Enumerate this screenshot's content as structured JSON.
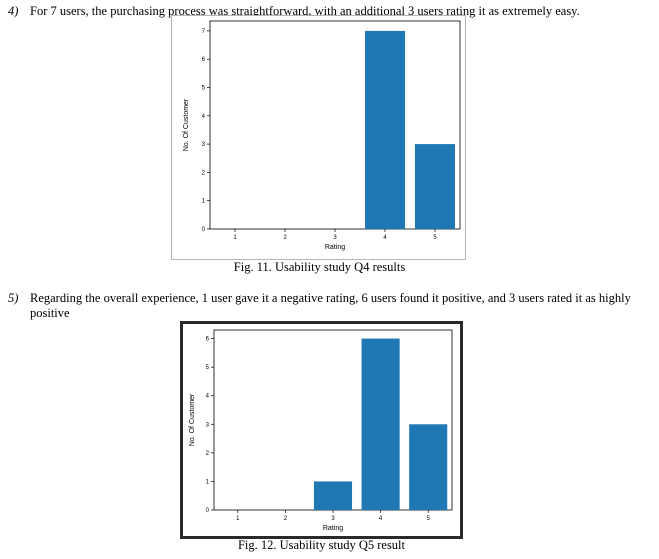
{
  "paragraphs": [
    {
      "num": "4)",
      "text": "For 7 users, the purchasing process was straightforward, with an additional 3 users rating it as extremely easy."
    },
    {
      "num": "5)",
      "line1": "Regarding the overall experience, 1 user gave it a negative rating, 6 users found it positive, and 3 users rated it as highly",
      "line2": "positive"
    }
  ],
  "captions": [
    "Fig. 11. Usability study Q4 results",
    "Fig. 12. Usability study Q5 result"
  ],
  "chart_data": [
    {
      "type": "bar",
      "categories": [
        "1",
        "2",
        "3",
        "4",
        "5"
      ],
      "values": [
        0,
        0,
        0,
        7,
        3
      ],
      "xlabel": "Rating",
      "ylabel": "No. Of Customer",
      "yticks": [
        "0",
        "1",
        "2",
        "3",
        "4",
        "5",
        "6",
        "7"
      ],
      "ylim": [
        0,
        7.35
      ],
      "color": "#1f77b4"
    },
    {
      "type": "bar",
      "categories": [
        "1",
        "2",
        "3",
        "4",
        "5"
      ],
      "values": [
        0,
        0,
        1,
        6,
        3
      ],
      "xlabel": "Rating",
      "ylabel": "No. Of Customer",
      "yticks": [
        "0",
        "1",
        "2",
        "3",
        "4",
        "5",
        "6"
      ],
      "ylim": [
        0,
        6.3
      ],
      "color": "#1f77b4"
    }
  ]
}
